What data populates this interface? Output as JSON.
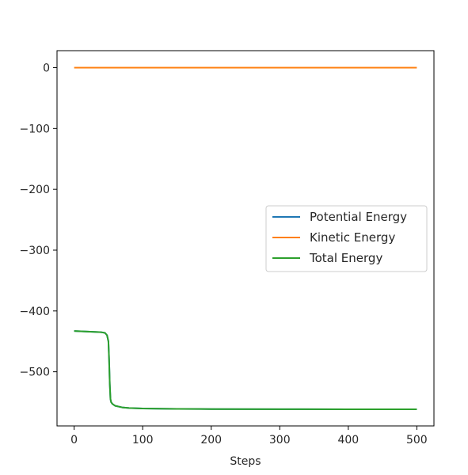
{
  "chart_data": {
    "type": "line",
    "title": "",
    "xlabel": "Steps",
    "ylabel": "",
    "xlim": [
      -25,
      525
    ],
    "ylim": [
      -589,
      28
    ],
    "xticks": [
      0,
      100,
      200,
      300,
      400,
      500
    ],
    "xtick_labels": [
      "0",
      "100",
      "200",
      "300",
      "400",
      "500"
    ],
    "yticks": [
      0,
      -100,
      -200,
      -300,
      -400,
      -500
    ],
    "ytick_labels": [
      "0",
      "−100",
      "−200",
      "−300",
      "−400",
      "−500"
    ],
    "grid": false,
    "legend_position": "center-right",
    "series": [
      {
        "name": "Potential Energy",
        "color": "#1f77b4",
        "x": [
          0,
          10,
          20,
          30,
          40,
          45,
          48,
          50,
          51,
          52,
          53,
          54,
          56,
          60,
          70,
          80,
          100,
          150,
          200,
          300,
          400,
          500
        ],
        "y": [
          -433,
          -433.5,
          -434,
          -434.5,
          -435,
          -436,
          -440,
          -450,
          -480,
          -520,
          -545,
          -550,
          -553,
          -556,
          -558.5,
          -559.5,
          -560.3,
          -561,
          -561.3,
          -561.5,
          -561.6,
          -561.7
        ]
      },
      {
        "name": "Kinetic Energy",
        "color": "#ff7f0e",
        "x": [
          0,
          100,
          200,
          300,
          400,
          500
        ],
        "y": [
          0,
          0,
          0,
          0,
          0,
          0
        ]
      },
      {
        "name": "Total Energy",
        "color": "#2ca02c",
        "x": [
          0,
          10,
          20,
          30,
          40,
          45,
          48,
          50,
          51,
          52,
          53,
          54,
          56,
          60,
          70,
          80,
          100,
          150,
          200,
          300,
          400,
          500
        ],
        "y": [
          -433,
          -433.5,
          -434,
          -434.5,
          -435,
          -436,
          -440,
          -450,
          -480,
          -520,
          -545,
          -550,
          -553,
          -556,
          -558.5,
          -559.5,
          -560.3,
          -561,
          -561.3,
          -561.5,
          -561.6,
          -561.7
        ]
      }
    ]
  }
}
